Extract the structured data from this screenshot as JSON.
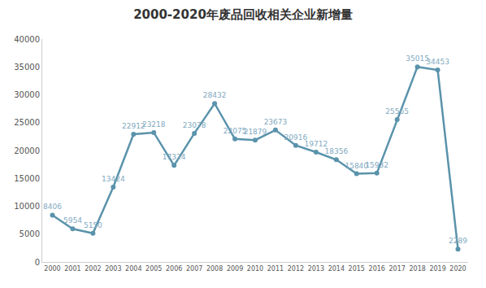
{
  "chart_data": {
    "type": "line",
    "title": "2000-2020年废品回收相关企业新增量",
    "categories": [
      "2000",
      "2001",
      "2002",
      "2003",
      "2004",
      "2005",
      "2006",
      "2007",
      "2008",
      "2009",
      "2010",
      "2011",
      "2012",
      "2013",
      "2014",
      "2015",
      "2016",
      "2017",
      "2018",
      "2019",
      "2020"
    ],
    "values": [
      8406,
      5954,
      5150,
      13424,
      22912,
      23218,
      17324,
      23078,
      28432,
      22075,
      21879,
      23673,
      20916,
      19712,
      18356,
      15840,
      15932,
      25565,
      35015,
      34453,
      2289
    ],
    "color": "#5a93ab",
    "ylim": [
      0,
      40000
    ],
    "yticks": [
      0,
      5000,
      10000,
      15000,
      20000,
      25000,
      30000,
      35000,
      40000
    ],
    "grid": false,
    "data_labels": true,
    "marker": "circle"
  }
}
